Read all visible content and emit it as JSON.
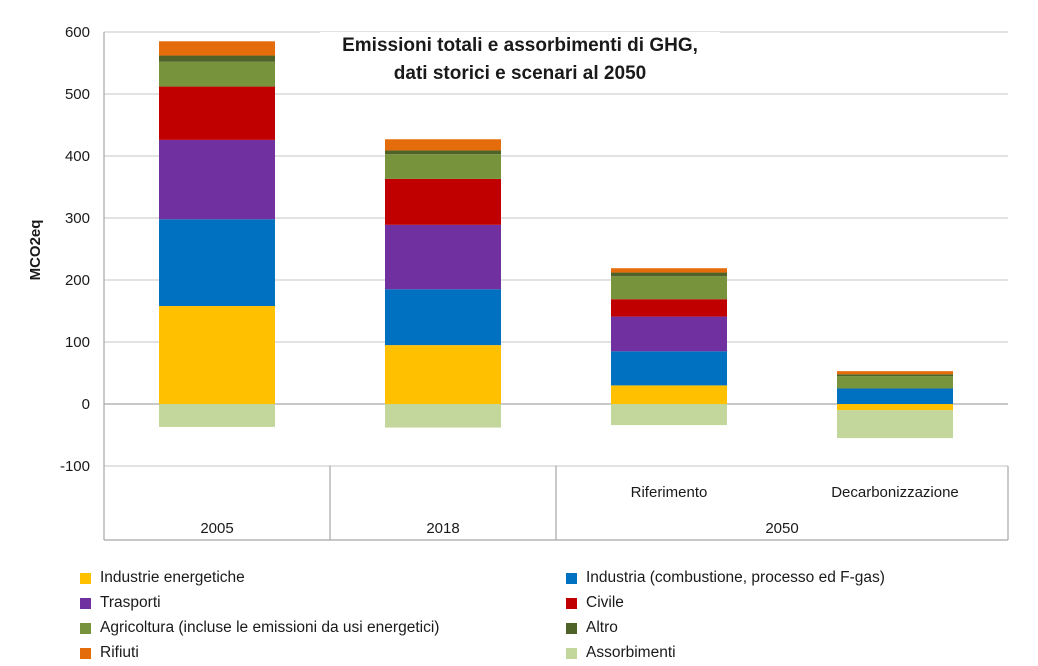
{
  "chart_data": {
    "type": "bar",
    "stacked": true,
    "title_line1": "Emissioni totali e assorbimenti di GHG,",
    "title_line2": "dati storici e scenari al 2050",
    "ylabel": "MCO2eq",
    "ylim": [
      -100,
      600
    ],
    "yticks": [
      "600",
      "500",
      "400",
      "300",
      "200",
      "100",
      "0",
      "-100"
    ],
    "grid": true,
    "legend_position": "bottom",
    "categories": [
      "2005",
      "2018",
      "Riferimento",
      "Decarbonizzazione"
    ],
    "group_labels": [
      "2005",
      "2018",
      "2050"
    ],
    "series": [
      {
        "name": "Industrie energetiche",
        "color": "#FFC000",
        "values": [
          158,
          95,
          30,
          -10
        ]
      },
      {
        "name": "Industria (combustione, processo ed F-gas)",
        "color": "#0070C0",
        "values": [
          140,
          90,
          55,
          25
        ]
      },
      {
        "name": "Trasporti",
        "color": "#7030A0",
        "values": [
          128,
          104,
          56,
          0
        ]
      },
      {
        "name": "Civile",
        "color": "#C00000",
        "values": [
          86,
          74,
          28,
          0
        ]
      },
      {
        "name": "Agricoltura (incluse le emissioni da usi energetici)",
        "color": "#77933C",
        "values": [
          40,
          40,
          37,
          20
        ]
      },
      {
        "name": "Altro",
        "color": "#4F6228",
        "values": [
          10,
          6,
          6,
          3
        ]
      },
      {
        "name": "Rifiuti",
        "color": "#E46C0A",
        "values": [
          23,
          18,
          7,
          5
        ]
      },
      {
        "name": "Assorbimenti",
        "color": "#C3D69B",
        "values": [
          -37,
          -38,
          -34,
          -45
        ]
      }
    ]
  }
}
